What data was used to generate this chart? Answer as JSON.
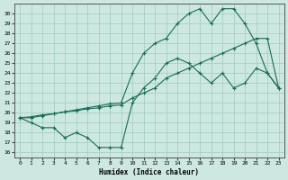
{
  "xlabel": "Humidex (Indice chaleur)",
  "bg_color": "#cce8e0",
  "grid_color": "#a8cfc4",
  "line_color": "#1a6b5a",
  "xlim": [
    -0.5,
    23.5
  ],
  "ylim": [
    15.5,
    31.0
  ],
  "xticks": [
    0,
    1,
    2,
    3,
    4,
    5,
    6,
    7,
    8,
    9,
    10,
    11,
    12,
    13,
    14,
    15,
    16,
    17,
    18,
    19,
    20,
    21,
    22,
    23
  ],
  "yticks": [
    16,
    17,
    18,
    19,
    20,
    21,
    22,
    23,
    24,
    25,
    26,
    27,
    28,
    29,
    30
  ],
  "curve1_x": [
    0,
    1,
    2,
    3,
    4,
    5,
    6,
    7,
    8,
    9,
    10,
    11,
    12,
    13,
    14,
    15,
    16,
    17,
    18,
    19,
    20,
    21,
    22,
    23
  ],
  "curve1_y": [
    19.5,
    19.0,
    18.5,
    18.5,
    17.5,
    18.0,
    17.5,
    16.5,
    16.5,
    16.5,
    21.0,
    22.5,
    23.5,
    25.0,
    25.5,
    25.0,
    24.0,
    23.0,
    24.0,
    22.5,
    23.0,
    24.5,
    24.0,
    22.5
  ],
  "curve2_x": [
    0,
    1,
    2,
    3,
    4,
    5,
    6,
    7,
    8,
    9,
    10,
    11,
    12,
    13,
    14,
    15,
    16,
    17,
    18,
    19,
    20,
    21,
    22,
    23
  ],
  "curve2_y": [
    19.5,
    19.5,
    19.7,
    19.9,
    20.1,
    20.3,
    20.5,
    20.7,
    20.9,
    21.0,
    24.0,
    26.0,
    27.0,
    27.5,
    29.0,
    30.0,
    30.5,
    29.0,
    30.5,
    30.5,
    29.0,
    27.0,
    24.0,
    22.5
  ],
  "curve3_x": [
    0,
    1,
    2,
    3,
    4,
    5,
    6,
    7,
    8,
    9,
    10,
    11,
    12,
    13,
    14,
    15,
    16,
    17,
    18,
    19,
    20,
    21,
    22,
    23
  ],
  "curve3_y": [
    19.5,
    19.6,
    19.8,
    19.9,
    20.1,
    20.2,
    20.4,
    20.5,
    20.7,
    20.8,
    21.5,
    22.0,
    22.5,
    23.5,
    24.0,
    24.5,
    25.0,
    25.5,
    26.0,
    26.5,
    27.0,
    27.5,
    27.5,
    22.5
  ]
}
